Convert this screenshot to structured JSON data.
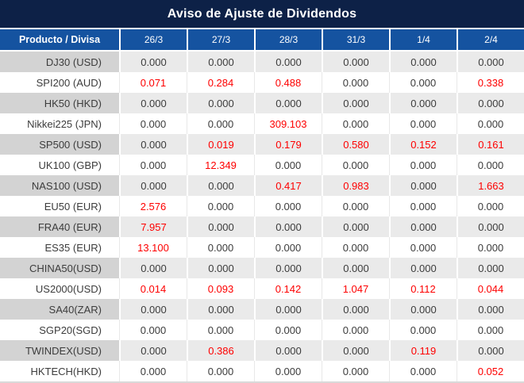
{
  "title": "Aviso de Ajuste de Dividendos",
  "header": {
    "product_label": "Producto / Divisa",
    "dates": [
      "26/3",
      "27/3",
      "28/3",
      "31/3",
      "1/4",
      "2/4"
    ]
  },
  "colors": {
    "title_bg": "#0d2147",
    "header_bg": "#1553a0",
    "label_gray": "#d3d3d3",
    "cell_gray": "#eaeaea",
    "value_red": "#fe0000",
    "text_dark": "#3c3c3c"
  },
  "chart_data": {
    "type": "table",
    "title": "Aviso de Ajuste de Dividendos",
    "columns": [
      "Producto / Divisa",
      "26/3",
      "27/3",
      "28/3",
      "31/3",
      "1/4",
      "2/4"
    ],
    "highlight_color": "#fe0000",
    "rows": [
      {
        "label": "DJ30 (USD)",
        "values": [
          "0.000",
          "0.000",
          "0.000",
          "0.000",
          "0.000",
          "0.000"
        ],
        "red": [
          false,
          false,
          false,
          false,
          false,
          false
        ]
      },
      {
        "label": "SPI200 (AUD)",
        "values": [
          "0.071",
          "0.284",
          "0.488",
          "0.000",
          "0.000",
          "0.338"
        ],
        "red": [
          true,
          true,
          true,
          false,
          false,
          true
        ]
      },
      {
        "label": "HK50 (HKD)",
        "values": [
          "0.000",
          "0.000",
          "0.000",
          "0.000",
          "0.000",
          "0.000"
        ],
        "red": [
          false,
          false,
          false,
          false,
          false,
          false
        ]
      },
      {
        "label": "Nikkei225 (JPN)",
        "values": [
          "0.000",
          "0.000",
          "309.103",
          "0.000",
          "0.000",
          "0.000"
        ],
        "red": [
          false,
          false,
          true,
          false,
          false,
          false
        ]
      },
      {
        "label": "SP500 (USD)",
        "values": [
          "0.000",
          "0.019",
          "0.179",
          "0.580",
          "0.152",
          "0.161"
        ],
        "red": [
          false,
          true,
          true,
          true,
          true,
          true
        ]
      },
      {
        "label": "UK100 (GBP)",
        "values": [
          "0.000",
          "12.349",
          "0.000",
          "0.000",
          "0.000",
          "0.000"
        ],
        "red": [
          false,
          true,
          false,
          false,
          false,
          false
        ]
      },
      {
        "label": "NAS100 (USD)",
        "values": [
          "0.000",
          "0.000",
          "0.417",
          "0.983",
          "0.000",
          "1.663"
        ],
        "red": [
          false,
          false,
          true,
          true,
          false,
          true
        ]
      },
      {
        "label": "EU50 (EUR)",
        "values": [
          "2.576",
          "0.000",
          "0.000",
          "0.000",
          "0.000",
          "0.000"
        ],
        "red": [
          true,
          false,
          false,
          false,
          false,
          false
        ]
      },
      {
        "label": "FRA40 (EUR)",
        "values": [
          "7.957",
          "0.000",
          "0.000",
          "0.000",
          "0.000",
          "0.000"
        ],
        "red": [
          true,
          false,
          false,
          false,
          false,
          false
        ]
      },
      {
        "label": "ES35 (EUR)",
        "values": [
          "13.100",
          "0.000",
          "0.000",
          "0.000",
          "0.000",
          "0.000"
        ],
        "red": [
          true,
          false,
          false,
          false,
          false,
          false
        ]
      },
      {
        "label": "CHINA50(USD)",
        "values": [
          "0.000",
          "0.000",
          "0.000",
          "0.000",
          "0.000",
          "0.000"
        ],
        "red": [
          false,
          false,
          false,
          false,
          false,
          false
        ]
      },
      {
        "label": "US2000(USD)",
        "values": [
          "0.014",
          "0.093",
          "0.142",
          "1.047",
          "0.112",
          "0.044"
        ],
        "red": [
          true,
          true,
          true,
          true,
          true,
          true
        ]
      },
      {
        "label": "SA40(ZAR)",
        "values": [
          "0.000",
          "0.000",
          "0.000",
          "0.000",
          "0.000",
          "0.000"
        ],
        "red": [
          false,
          false,
          false,
          false,
          false,
          false
        ]
      },
      {
        "label": "SGP20(SGD)",
        "values": [
          "0.000",
          "0.000",
          "0.000",
          "0.000",
          "0.000",
          "0.000"
        ],
        "red": [
          false,
          false,
          false,
          false,
          false,
          false
        ]
      },
      {
        "label": "TWINDEX(USD)",
        "values": [
          "0.000",
          "0.386",
          "0.000",
          "0.000",
          "0.119",
          "0.000"
        ],
        "red": [
          false,
          true,
          false,
          false,
          true,
          false
        ]
      },
      {
        "label": "HKTECH(HKD)",
        "values": [
          "0.000",
          "0.000",
          "0.000",
          "0.000",
          "0.000",
          "0.052"
        ],
        "red": [
          false,
          false,
          false,
          false,
          false,
          true
        ]
      }
    ]
  }
}
